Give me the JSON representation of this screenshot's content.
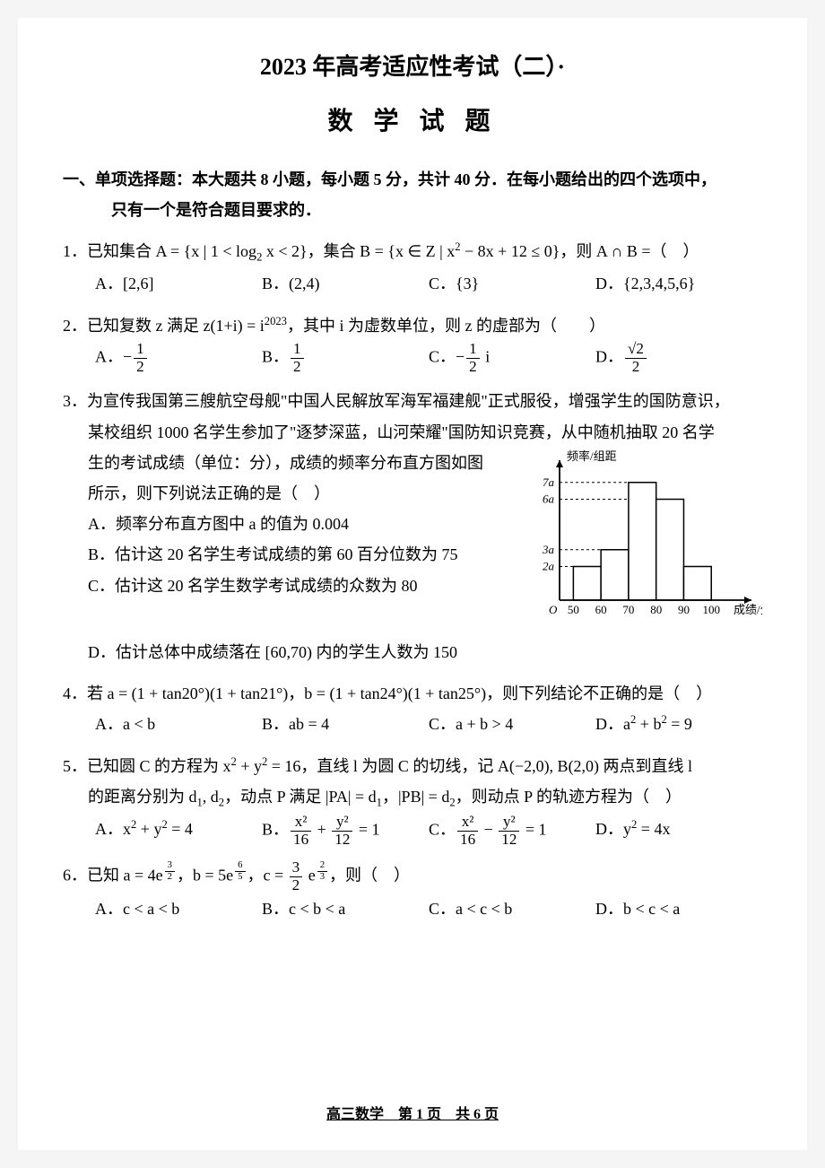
{
  "header": {
    "title": "2023 年高考适应性考试（二）·",
    "subtitle": "数 学 试 题"
  },
  "section1": {
    "heading_line1": "一、单项选择题：本大题共 8 小题，每小题 5 分，共计 40 分．在每小题给出的四个选项中，",
    "heading_line2": "只有一个是符合题目要求的．"
  },
  "q1": {
    "stem_pre": "1．已知集合 A = {x | 1 < log",
    "stem_sub": "2",
    "stem_mid": " x < 2}，集合 B = {x ∈ Z | x",
    "stem_sup": "2",
    "stem_post": " − 8x + 12 ≤ 0}，则 A ∩ B =（　）",
    "A": "A．[2,6]",
    "B": "B．(2,4)",
    "C": "C．{3}",
    "D": "D．{2,3,4,5,6}"
  },
  "q2": {
    "stem_pre": "2．已知复数 z 满足 z(1+i) = i",
    "stem_sup": "2023",
    "stem_post": "，其中 i 为虚数单位，则 z 的虚部为（　　）",
    "A_pre": "A．−",
    "A_num": "1",
    "A_den": "2",
    "B_pre": "B．",
    "B_num": "1",
    "B_den": "2",
    "C_pre": "C．−",
    "C_num": "1",
    "C_den": "2",
    "C_post": " i",
    "D_pre": "D．",
    "D_num": "√2",
    "D_den": "2"
  },
  "q3": {
    "l1": "3．为宣传我国第三艘航空母舰\"中国人民解放军海军福建舰\"正式服役，增强学生的国防意识，",
    "l2": "某校组织 1000 名学生参加了\"逐梦深蓝，山河荣耀\"国防知识竞赛，从中随机抽取 20 名学",
    "l3": "生的考试成绩（单位：分），成绩的频率分布直方图如图",
    "l4": "所示，则下列说法正确的是（　）",
    "A": "A．频率分布直方图中 a 的值为 0.004",
    "B": "B．估计这 20 名学生考试成绩的第 60 百分位数为 75",
    "C": "C．估计这 20 名学生数学考试成绩的众数为 80",
    "D": "D．估计总体中成绩落在 [60,70) 内的学生人数为 150"
  },
  "chart": {
    "ylabel": "频率/组距",
    "xlabel": "成绩/分",
    "yticks": [
      "2a",
      "3a",
      "6a",
      "7a"
    ],
    "ytick_vals": [
      2,
      3,
      6,
      7
    ],
    "xticks": [
      "50",
      "60",
      "70",
      "80",
      "90",
      "100"
    ],
    "bars": [
      {
        "x0": 50,
        "x1": 60,
        "h": 2
      },
      {
        "x0": 60,
        "x1": 70,
        "h": 3
      },
      {
        "x0": 70,
        "x1": 80,
        "h": 7
      },
      {
        "x0": 80,
        "x1": 90,
        "h": 6
      },
      {
        "x0": 90,
        "x1": 100,
        "h": 2
      }
    ],
    "axis_color": "#000000",
    "bar_fill": "#ffffff",
    "bar_stroke": "#000000",
    "grid_dash": "3,3",
    "font_size": 13,
    "xlim": [
      45,
      110
    ],
    "ylim": [
      0,
      8
    ]
  },
  "q4": {
    "stem": "4．若 a = (1 + tan20°)(1 + tan21°)，b = (1 + tan24°)(1 + tan25°)，则下列结论不正确的是（　）",
    "A": "A．a < b",
    "B": "B．ab = 4",
    "C": "C．a + b > 4",
    "D_pre": "D．a",
    "D_sup1": "2",
    "D_mid": " + b",
    "D_sup2": "2",
    "D_post": " = 9"
  },
  "q5": {
    "stem_pre": "5．已知圆 C 的方程为 x",
    "sup1": "2",
    "stem_mid1": " + y",
    "sup2": "2",
    "stem_mid2": " = 16，直线 l 为圆 C 的切线，记 A(−2,0), B(2,0) 两点到直线 l",
    "l2_pre": "的距离分别为 d",
    "s1": "1",
    "l2_mid1": ", d",
    "s2": "2",
    "l2_mid2": "，动点 P 满足 |PA| = d",
    "s3": "1",
    "l2_mid3": "，|PB| = d",
    "s4": "2",
    "l2_post": "，则动点 P 的轨迹方程为（　）",
    "A_pre": "A．x",
    "A_s1": "2",
    "A_mid": " + y",
    "A_s2": "2",
    "A_post": " = 4",
    "B_pre": "B．",
    "B_n1": "x²",
    "B_d1": "16",
    "B_plus": " + ",
    "B_n2": "y²",
    "B_d2": "12",
    "B_eq": " = 1",
    "C_pre": "C．",
    "C_n1": "x²",
    "C_d1": "16",
    "C_minus": " − ",
    "C_n2": "y²",
    "C_d2": "12",
    "C_eq": " = 1",
    "D_pre": "D．y",
    "D_s": "2",
    "D_post": " = 4x"
  },
  "q6": {
    "stem_pre": "6．已知 a = 4e",
    "a_num": "3",
    "a_den": "2",
    "stem_mid1": "，b = 5e",
    "b_num": "6",
    "b_den": "5",
    "stem_mid2": "，c = ",
    "c_coef_num": "3",
    "c_coef_den": "2",
    "stem_mid3": " e",
    "c_num": "2",
    "c_den": "3",
    "stem_post": "，则（　）",
    "A": "A．c < a < b",
    "B": "B．c < b < a",
    "C": "C．a < c < b",
    "D": "D．b < c < a"
  },
  "footer": {
    "text": "高三数学　第 1 页　共 6 页"
  }
}
